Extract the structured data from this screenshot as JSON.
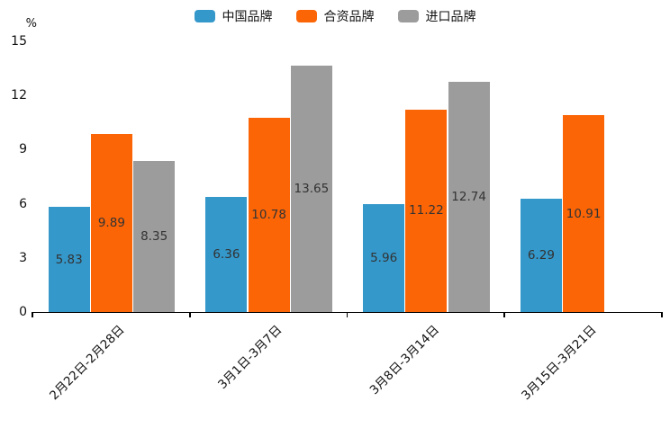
{
  "chart_data": {
    "type": "bar",
    "title": "",
    "ylabel": "%",
    "categories": [
      "2月22日-2月28日",
      "3月1日-3月7日",
      "3月8日-3月14日",
      "3月15日-3月21日"
    ],
    "series": [
      {
        "name": "中国品牌",
        "color": "#3498CB",
        "values": [
          5.83,
          6.36,
          5.96,
          6.29
        ]
      },
      {
        "name": "合资品牌",
        "color": "#FC6506",
        "values": [
          9.89,
          10.78,
          11.22,
          10.91
        ]
      },
      {
        "name": "进口品牌",
        "color": "#9C9C9C",
        "values": [
          8.35,
          13.65,
          12.74,
          null
        ]
      }
    ],
    "ylim": [
      0,
      15
    ],
    "yticks": [
      0,
      3,
      6,
      9,
      12,
      15
    ],
    "grid": false,
    "legend_position": "top",
    "value_labels": "centered-in-bar",
    "x_label_rotation_deg": 45
  }
}
